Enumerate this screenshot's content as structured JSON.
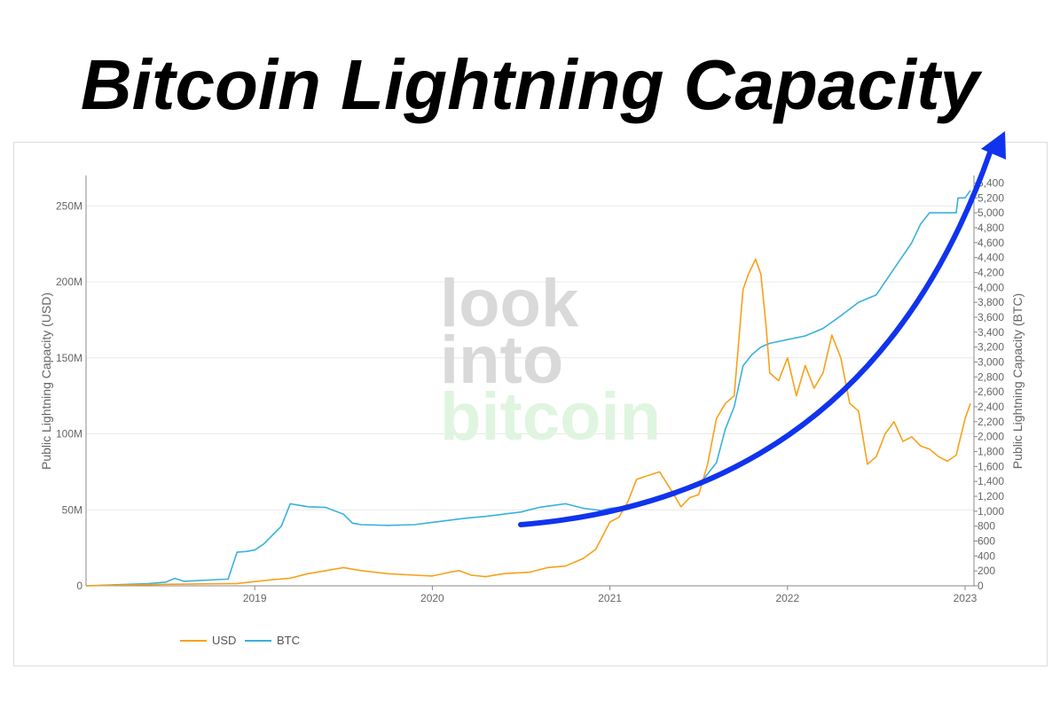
{
  "page": {
    "title": "Bitcoin Lightning Capacity"
  },
  "watermark": {
    "line1": "look",
    "line2": "into",
    "line3": "bitcoin"
  },
  "colors": {
    "usd": "#f7a11a",
    "btc": "#3ab0dc",
    "arrow": "#1033ee",
    "grid": "#e8e8e8"
  },
  "chart_data": {
    "type": "line",
    "title": "Bitcoin Lightning Capacity",
    "xlabel": "",
    "ylabel": "Public Lightning Capacity (USD)",
    "y2label": "Public Lightning Capacity (BTC)",
    "xlim": [
      2018.05,
      2023.05
    ],
    "ylim": [
      0,
      270000000
    ],
    "y2lim": [
      0,
      5500
    ],
    "x_ticks": [
      2019,
      2020,
      2021,
      2022,
      2023
    ],
    "x_tick_labels": [
      "2019",
      "2020",
      "2021",
      "2022",
      "2023"
    ],
    "y_ticks": [
      0,
      50000000,
      100000000,
      150000000,
      200000000,
      250000000
    ],
    "y_tick_labels": [
      "0",
      "50M",
      "100M",
      "150M",
      "200M",
      "250M"
    ],
    "y2_ticks": [
      0,
      200,
      400,
      600,
      800,
      1000,
      1200,
      1400,
      1600,
      1800,
      2000,
      2200,
      2400,
      2600,
      2800,
      3000,
      3200,
      3400,
      3600,
      3800,
      4000,
      4200,
      4400,
      4600,
      4800,
      5000,
      5200,
      5400
    ],
    "y2_tick_labels": [
      "0",
      "200",
      "400",
      "600",
      "800",
      "1,000",
      "1,200",
      "1,400",
      "1,600",
      "1,800",
      "2,000",
      "2,200",
      "2,400",
      "2,600",
      "2,800",
      "3,000",
      "3,200",
      "3,400",
      "3,600",
      "3,800",
      "4,000",
      "4,200",
      "4,400",
      "4,600",
      "4,800",
      "5,000",
      "5,200",
      "5,400"
    ],
    "grid": true,
    "legend_position": "bottom-left",
    "series": [
      {
        "name": "USD",
        "axis": "left",
        "x": [
          2018.05,
          2018.5,
          2018.9,
          2019.1,
          2019.2,
          2019.3,
          2019.4,
          2019.5,
          2019.6,
          2019.75,
          2019.9,
          2020.0,
          2020.1,
          2020.15,
          2020.22,
          2020.3,
          2020.4,
          2020.55,
          2020.65,
          2020.75,
          2020.85,
          2020.92,
          2021.0,
          2021.05,
          2021.1,
          2021.15,
          2021.2,
          2021.28,
          2021.35,
          2021.4,
          2021.45,
          2021.5,
          2021.55,
          2021.6,
          2021.65,
          2021.7,
          2021.75,
          2021.78,
          2021.82,
          2021.85,
          2021.88,
          2021.9,
          2021.95,
          2022.0,
          2022.05,
          2022.1,
          2022.15,
          2022.2,
          2022.25,
          2022.3,
          2022.35,
          2022.4,
          2022.45,
          2022.5,
          2022.55,
          2022.6,
          2022.65,
          2022.7,
          2022.75,
          2022.8,
          2022.85,
          2022.9,
          2022.95,
          2023.0,
          2023.03
        ],
        "values": [
          0,
          1000000,
          1500000,
          4000000,
          5000000,
          8000000,
          10000000,
          12000000,
          10000000,
          8000000,
          7000000,
          6500000,
          9000000,
          10000000,
          7000000,
          6000000,
          8000000,
          9000000,
          12000000,
          13000000,
          18000000,
          24000000,
          42000000,
          45000000,
          55000000,
          70000000,
          72000000,
          75000000,
          62000000,
          52000000,
          58000000,
          60000000,
          80000000,
          110000000,
          120000000,
          125000000,
          195000000,
          205000000,
          215000000,
          205000000,
          170000000,
          140000000,
          135000000,
          150000000,
          125000000,
          145000000,
          130000000,
          140000000,
          165000000,
          150000000,
          120000000,
          115000000,
          80000000,
          85000000,
          100000000,
          108000000,
          95000000,
          98000000,
          92000000,
          90000000,
          85000000,
          82000000,
          86000000,
          110000000,
          120000000
        ]
      },
      {
        "name": "BTC",
        "axis": "right",
        "x": [
          2018.05,
          2018.4,
          2018.5,
          2018.55,
          2018.6,
          2018.85,
          2018.9,
          2018.95,
          2019.0,
          2019.05,
          2019.15,
          2019.2,
          2019.3,
          2019.4,
          2019.5,
          2019.55,
          2019.6,
          2019.75,
          2019.9,
          2020.0,
          2020.1,
          2020.2,
          2020.3,
          2020.4,
          2020.5,
          2020.6,
          2020.75,
          2020.85,
          2020.95,
          2021.0,
          2021.1,
          2021.2,
          2021.3,
          2021.4,
          2021.5,
          2021.6,
          2021.65,
          2021.7,
          2021.75,
          2021.8,
          2021.85,
          2021.9,
          2022.0,
          2022.1,
          2022.2,
          2022.3,
          2022.4,
          2022.5,
          2022.6,
          2022.7,
          2022.75,
          2022.8,
          2022.9,
          2022.95,
          2022.96,
          2023.0,
          2023.03
        ],
        "values": [
          0,
          30,
          50,
          100,
          60,
          90,
          450,
          460,
          480,
          560,
          800,
          1100,
          1060,
          1050,
          960,
          840,
          820,
          810,
          820,
          850,
          880,
          910,
          930,
          960,
          990,
          1050,
          1100,
          1040,
          1010,
          1040,
          1060,
          1100,
          1170,
          1250,
          1350,
          1650,
          2100,
          2400,
          2950,
          3100,
          3200,
          3250,
          3300,
          3350,
          3450,
          3620,
          3800,
          3900,
          4250,
          4600,
          4850,
          5000,
          5000,
          5000,
          5200,
          5200,
          5300
        ]
      }
    ]
  }
}
